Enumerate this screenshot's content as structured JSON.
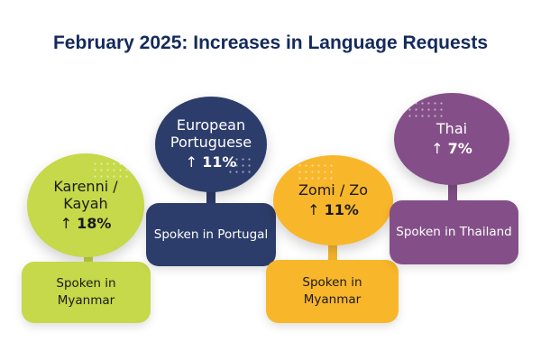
{
  "title": "February 2025: Increases in Language Requests",
  "arrow_icon": "↑",
  "items": [
    {
      "language": "Karenni /\nKayah",
      "change": "18%",
      "spoken_in": "Spoken in\nMyanmar",
      "color": "#c5d94a"
    },
    {
      "language": "European\nPortuguese",
      "change": "11%",
      "spoken_in": "Spoken in Portugal",
      "color": "#2d3d6b"
    },
    {
      "language": "Zomi / Zo",
      "change": "11%",
      "spoken_in": "Spoken in\nMyanmar",
      "color": "#f8b62b"
    },
    {
      "language": "Thai",
      "change": "7%",
      "spoken_in": "Spoken in Thailand",
      "color": "#844f88"
    }
  ]
}
